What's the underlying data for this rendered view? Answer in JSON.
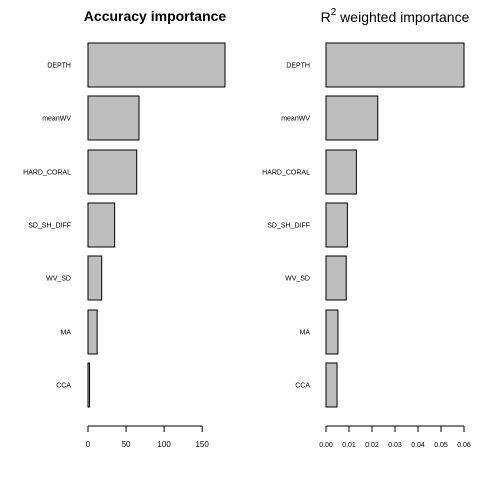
{
  "chart_data": [
    {
      "type": "bar",
      "orientation": "horizontal",
      "title": "Accuracy importance",
      "title_weight": "bold",
      "categories": [
        "DEPTH",
        "meanWV",
        "HARD_CORAL",
        "SD_SH_DIFF",
        "WV_SD",
        "MA",
        "CCA"
      ],
      "values": [
        180,
        67,
        64,
        35,
        18,
        12,
        2
      ],
      "xlim": [
        0,
        180
      ],
      "xticks": [
        0,
        50,
        100,
        150
      ],
      "xtick_labels": [
        "0",
        "50",
        "100",
        "150"
      ],
      "bar_color": "#bebebe",
      "edge_color": "#000000",
      "grid": false,
      "legend": false
    },
    {
      "type": "bar",
      "orientation": "horizontal",
      "title": "R2 weighted importance",
      "title_parts": {
        "base": "R",
        "sup": "2",
        "rest": " weighted importance"
      },
      "title_weight": "normal",
      "categories": [
        "DEPTH",
        "meanWV",
        "HARD_CORAL",
        "SD_SH_DIFF",
        "WV_SD",
        "MA",
        "CCA"
      ],
      "values": [
        0.06,
        0.0225,
        0.0132,
        0.0093,
        0.0088,
        0.0052,
        0.0048
      ],
      "xlim": [
        0,
        0.06
      ],
      "xticks": [
        0,
        0.01,
        0.02,
        0.03,
        0.04,
        0.05,
        0.06
      ],
      "xtick_labels": [
        "0.00",
        "0.01",
        "0.02",
        "0.03",
        "0.04",
        "0.05",
        "0.06"
      ],
      "bar_color": "#bebebe",
      "edge_color": "#000000",
      "grid": false,
      "legend": false
    }
  ]
}
